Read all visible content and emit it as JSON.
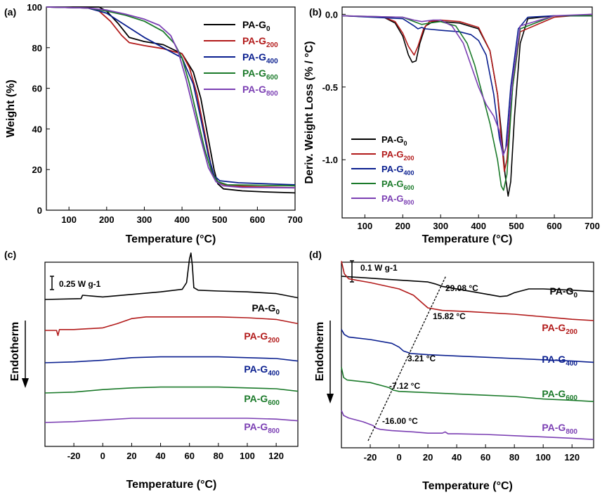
{
  "colors": {
    "PA-G0": "#000000",
    "PA-G200": "#b21a1a",
    "PA-G400": "#0a1f8f",
    "PA-G600": "#1b7a2a",
    "PA-G800": "#7b3fb3"
  },
  "series_labels": [
    {
      "key": "PA-G0",
      "base": "PA-G",
      "sub": "0"
    },
    {
      "key": "PA-G200",
      "base": "PA-G",
      "sub": "200"
    },
    {
      "key": "PA-G400",
      "base": "PA-G",
      "sub": "400"
    },
    {
      "key": "PA-G600",
      "base": "PA-G",
      "sub": "600"
    },
    {
      "key": "PA-G800",
      "base": "PA-G",
      "sub": "800"
    }
  ],
  "chart_data": [
    {
      "panel": "(a)",
      "type": "line",
      "xlabel": "Temperature (°C)",
      "ylabel": "Weight (%)",
      "xlim": [
        40,
        700
      ],
      "ylim": [
        0,
        100
      ],
      "xticks": [
        100,
        200,
        300,
        400,
        500,
        600,
        700
      ],
      "yticks": [
        0,
        20,
        40,
        60,
        80,
        100
      ],
      "legend": "top-right",
      "series": [
        {
          "name": "PA-G0",
          "x": [
            40,
            180,
            200,
            230,
            260,
            300,
            350,
            400,
            430,
            450,
            470,
            485,
            495,
            510,
            560,
            620,
            700
          ],
          "y": [
            100,
            100,
            98,
            92,
            85,
            83,
            81.5,
            77,
            68,
            55,
            35,
            20,
            13,
            10.5,
            9.5,
            9,
            8.5
          ]
        },
        {
          "name": "PA-G200",
          "x": [
            40,
            150,
            180,
            210,
            240,
            260,
            300,
            350,
            400,
            420,
            440,
            460,
            480,
            495,
            520,
            600,
            700
          ],
          "y": [
            100,
            99.5,
            98,
            93,
            86,
            82.5,
            81,
            79.5,
            77,
            70,
            57,
            38,
            19,
            14,
            12,
            11.5,
            11
          ]
        },
        {
          "name": "PA-G400",
          "x": [
            40,
            150,
            200,
            250,
            300,
            350,
            400,
            430,
            450,
            470,
            485,
            500,
            550,
            700
          ],
          "y": [
            100,
            99.5,
            97,
            91,
            85,
            80,
            75,
            62,
            45,
            27,
            17,
            14.5,
            13.5,
            12.5
          ]
        },
        {
          "name": "PA-G600",
          "x": [
            40,
            150,
            200,
            250,
            300,
            350,
            380,
            400,
            420,
            440,
            460,
            480,
            495,
            520,
            700
          ],
          "y": [
            100,
            99.5,
            98,
            96,
            93,
            88,
            82,
            75,
            62,
            46,
            30,
            18,
            14,
            12.5,
            12
          ]
        },
        {
          "name": "PA-G800",
          "x": [
            40,
            150,
            200,
            250,
            300,
            340,
            370,
            390,
            410,
            430,
            450,
            470,
            490,
            510,
            560,
            700
          ],
          "y": [
            100,
            99.5,
            98.5,
            96.5,
            94,
            91,
            86,
            78,
            65,
            50,
            35,
            21,
            14,
            12,
            11.2,
            11
          ]
        }
      ]
    },
    {
      "panel": "(b)",
      "type": "line",
      "xlabel": "Temperature (°C)",
      "ylabel": "Deriv. Weight Loss (% / °C)",
      "xlim": [
        40,
        700
      ],
      "ylim": [
        -1.4,
        0.05
      ],
      "xticks": [
        100,
        200,
        300,
        400,
        500,
        600,
        700
      ],
      "yticks": [
        0.0,
        -0.5,
        -1.0
      ],
      "ytick_labels": [
        "0.0",
        "-0.5",
        "-1.0"
      ],
      "legend": "bottom-left",
      "series": [
        {
          "name": "PA-G0",
          "x": [
            40,
            150,
            180,
            200,
            215,
            225,
            235,
            245,
            260,
            280,
            300,
            350,
            400,
            430,
            450,
            460,
            470,
            478,
            485,
            495,
            510,
            530,
            600,
            700
          ],
          "y": [
            -0.01,
            -0.02,
            -0.06,
            -0.15,
            -0.28,
            -0.33,
            -0.32,
            -0.2,
            -0.08,
            -0.05,
            -0.05,
            -0.06,
            -0.1,
            -0.25,
            -0.55,
            -0.8,
            -1.1,
            -1.25,
            -1.15,
            -0.7,
            -0.2,
            -0.03,
            -0.01,
            -0.01
          ]
        },
        {
          "name": "PA-G200",
          "x": [
            40,
            150,
            180,
            200,
            215,
            230,
            240,
            255,
            270,
            300,
            350,
            400,
            430,
            450,
            460,
            468,
            475,
            490,
            510,
            600,
            700
          ],
          "y": [
            -0.01,
            -0.02,
            -0.05,
            -0.13,
            -0.22,
            -0.28,
            -0.22,
            -0.1,
            -0.05,
            -0.04,
            -0.05,
            -0.09,
            -0.25,
            -0.55,
            -0.85,
            -1.08,
            -1.0,
            -0.5,
            -0.12,
            -0.02,
            0.0
          ]
        },
        {
          "name": "PA-G400",
          "x": [
            40,
            200,
            230,
            240,
            250,
            260,
            300,
            350,
            380,
            400,
            420,
            440,
            455,
            465,
            472,
            485,
            505,
            530,
            600,
            700
          ],
          "y": [
            -0.01,
            -0.03,
            -0.08,
            -0.1,
            -0.09,
            -0.1,
            -0.11,
            -0.12,
            -0.14,
            -0.18,
            -0.28,
            -0.55,
            -0.85,
            -0.97,
            -0.92,
            -0.5,
            -0.1,
            -0.02,
            -0.01,
            -0.01
          ]
        },
        {
          "name": "PA-G600",
          "x": [
            40,
            200,
            230,
            250,
            270,
            300,
            340,
            370,
            390,
            410,
            430,
            450,
            460,
            466,
            475,
            490,
            510,
            600,
            700
          ],
          "y": [
            -0.01,
            -0.02,
            -0.05,
            -0.07,
            -0.06,
            -0.05,
            -0.08,
            -0.2,
            -0.35,
            -0.55,
            -0.75,
            -1.0,
            -1.18,
            -1.21,
            -1.1,
            -0.5,
            -0.1,
            -0.01,
            -0.01
          ]
        },
        {
          "name": "PA-G800",
          "x": [
            40,
            200,
            230,
            250,
            280,
            300,
            330,
            360,
            380,
            400,
            420,
            440,
            455,
            465,
            475,
            490,
            510,
            600,
            700
          ],
          "y": [
            -0.01,
            -0.02,
            -0.04,
            -0.05,
            -0.04,
            -0.04,
            -0.08,
            -0.2,
            -0.35,
            -0.5,
            -0.62,
            -0.7,
            -0.8,
            -0.97,
            -0.9,
            -0.45,
            -0.08,
            -0.01,
            0.0
          ]
        }
      ]
    },
    {
      "panel": "(c)",
      "type": "line",
      "xlabel": "Temperature (°C)",
      "ylabel": "Endotherm",
      "xlim": [
        -40,
        135
      ],
      "xticks": [
        -20,
        0,
        20,
        40,
        60,
        80,
        100,
        120
      ],
      "scale_bar": "0.25 W g-1",
      "series": [
        {
          "name": "PA-G0",
          "x": [
            -40,
            -15,
            -14,
            0,
            20,
            40,
            55,
            58,
            60,
            61,
            62,
            63,
            66,
            80,
            100,
            120,
            135
          ],
          "y": [
            0.0,
            0.01,
            0.05,
            0.03,
            0.06,
            0.09,
            0.12,
            0.2,
            0.48,
            0.55,
            0.4,
            0.14,
            0.11,
            0.1,
            0.09,
            0.07,
            0.02
          ]
        },
        {
          "name": "PA-G200",
          "x": [
            -40,
            -32,
            -31,
            -30,
            -20,
            0,
            10,
            20,
            30,
            50,
            80,
            100,
            120,
            135
          ],
          "y": [
            0.0,
            0.0,
            -0.06,
            0.01,
            0.01,
            0.03,
            0.08,
            0.14,
            0.16,
            0.16,
            0.16,
            0.15,
            0.13,
            0.08
          ]
        },
        {
          "name": "PA-G400",
          "x": [
            -40,
            -20,
            0,
            20,
            40,
            60,
            80,
            100,
            120,
            135
          ],
          "y": [
            0.0,
            0.01,
            0.03,
            0.06,
            0.07,
            0.07,
            0.07,
            0.06,
            0.05,
            0.02
          ]
        },
        {
          "name": "PA-G600",
          "x": [
            -40,
            -20,
            0,
            20,
            40,
            60,
            80,
            100,
            120,
            135
          ],
          "y": [
            0.0,
            0.01,
            0.04,
            0.06,
            0.07,
            0.07,
            0.07,
            0.06,
            0.05,
            0.02
          ]
        },
        {
          "name": "PA-G800",
          "x": [
            -40,
            -20,
            0,
            20,
            40,
            60,
            80,
            100,
            120,
            135
          ],
          "y": [
            0.0,
            0.01,
            0.03,
            0.05,
            0.05,
            0.05,
            0.05,
            0.05,
            0.04,
            0.02
          ]
        }
      ]
    },
    {
      "panel": "(d)",
      "type": "line",
      "xlabel": "Temperature (°C)",
      "ylabel": "Endotherm",
      "xlim": [
        -40,
        135
      ],
      "xticks": [
        -20,
        0,
        20,
        40,
        60,
        80,
        100,
        120
      ],
      "scale_bar": "0.1 W g-1",
      "glass_transitions": [
        "29.08 °C",
        "15.82 °C",
        "3.21 °C",
        "-7.12 °C",
        "-16.00 °C"
      ],
      "series": [
        {
          "name": "PA-G0",
          "x": [
            -40,
            -20,
            0,
            20,
            25,
            30,
            35,
            45,
            60,
            70,
            75,
            80,
            90,
            100,
            120,
            135
          ],
          "y": [
            0.0,
            -0.015,
            -0.03,
            -0.045,
            -0.06,
            -0.08,
            -0.09,
            -0.11,
            -0.14,
            -0.16,
            -0.155,
            -0.13,
            -0.1,
            -0.1,
            -0.11,
            -0.12
          ]
        },
        {
          "name": "PA-G200",
          "x": [
            -40,
            -38,
            -35,
            -20,
            0,
            10,
            15,
            20,
            30,
            50,
            80,
            100,
            120,
            135
          ],
          "y": [
            0.12,
            0.02,
            -0.02,
            -0.05,
            -0.1,
            -0.15,
            -0.2,
            -0.25,
            -0.27,
            -0.28,
            -0.3,
            -0.32,
            -0.34,
            -0.35
          ]
        },
        {
          "name": "PA-G400",
          "x": [
            -40,
            -38,
            -35,
            -20,
            -5,
            0,
            3,
            8,
            20,
            40,
            60,
            80,
            100,
            120,
            135
          ],
          "y": [
            -0.42,
            -0.46,
            -0.48,
            -0.5,
            -0.53,
            -0.56,
            -0.59,
            -0.61,
            -0.62,
            -0.63,
            -0.64,
            -0.65,
            -0.66,
            -0.67,
            -0.68
          ]
        },
        {
          "name": "PA-G600",
          "x": [
            -40,
            -38.5,
            -36,
            -20,
            -10,
            -7,
            -4,
            0,
            20,
            40,
            60,
            80,
            100,
            120,
            135
          ],
          "y": [
            -0.72,
            -0.8,
            -0.82,
            -0.84,
            -0.87,
            -0.88,
            -0.9,
            -0.91,
            -0.92,
            -0.93,
            -0.94,
            -0.95,
            -0.97,
            -0.98,
            -0.99
          ]
        },
        {
          "name": "PA-G800",
          "x": [
            -40,
            -38.5,
            -35,
            -25,
            -18,
            -16,
            -13,
            -5,
            10,
            20,
            30,
            32,
            34,
            40,
            60,
            80,
            100,
            120,
            135
          ],
          "y": [
            -1.06,
            -1.1,
            -1.12,
            -1.15,
            -1.18,
            -1.2,
            -1.21,
            -1.22,
            -1.23,
            -1.24,
            -1.24,
            -1.23,
            -1.245,
            -1.245,
            -1.25,
            -1.26,
            -1.27,
            -1.28,
            -1.29
          ]
        }
      ]
    }
  ],
  "panel_d_annotations": [
    {
      "text": "29.08 °C",
      "x": 29,
      "y": -0.08
    },
    {
      "text": "15.82 °C",
      "x": 16,
      "y": -0.22
    },
    {
      "text": "3.21 °C",
      "x": 3,
      "y": -0.58
    },
    {
      "text": "-7.12 °C",
      "x": -7,
      "y": -0.88
    },
    {
      "text": "-16.00 °C",
      "x": -16,
      "y": -1.2
    }
  ]
}
